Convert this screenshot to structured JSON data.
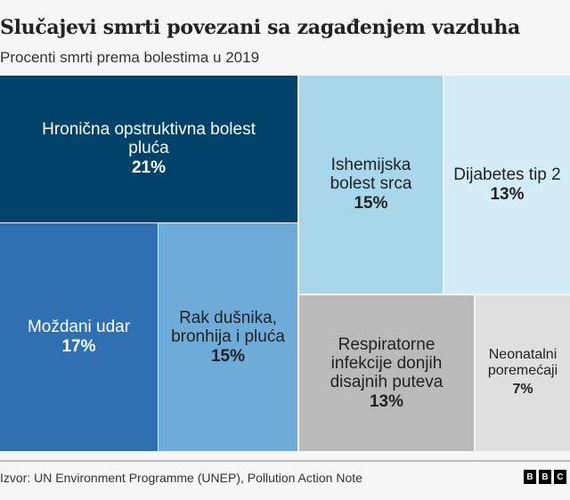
{
  "chart_data": {
    "type": "treemap",
    "title": "Slučajevi smrti povezani sa zagađenjem vazduha",
    "subtitle": "Procenti smrti prema bolestima u 2019",
    "unit": "%",
    "items": [
      {
        "label": "Hronična opstruktivna bolest pluća",
        "value": 21,
        "value_label": "21%",
        "color": "#00426a",
        "text_color": "#ffffff"
      },
      {
        "label": "Moždani udar",
        "value": 17,
        "value_label": "17%",
        "color": "#2e70b1",
        "text_color": "#ffffff"
      },
      {
        "label": "Rak dušnika, bronhija i pluća",
        "value": 15,
        "value_label": "15%",
        "color": "#6fabd9",
        "text_color": "#222222"
      },
      {
        "label": "Ishemijska bolest srca",
        "value": 15,
        "value_label": "15%",
        "color": "#a8d6eb",
        "text_color": "#222222"
      },
      {
        "label": "Dijabetes tip 2",
        "value": 13,
        "value_label": "13%",
        "color": "#d3ecf7",
        "text_color": "#222222"
      },
      {
        "label": "Respiratorne infekcije donjih disajnih puteva",
        "value": 13,
        "value_label": "13%",
        "color": "#bababa",
        "text_color": "#222222"
      },
      {
        "label": "Neonatalni poremećaji",
        "value": 7,
        "value_label": "7%",
        "color": "#dfdfdf",
        "text_color": "#222222"
      }
    ]
  },
  "footer": {
    "source": "Izvor: UN Environment Programme (UNEP), Pollution Action Note",
    "logo": [
      "B",
      "B",
      "C"
    ]
  }
}
